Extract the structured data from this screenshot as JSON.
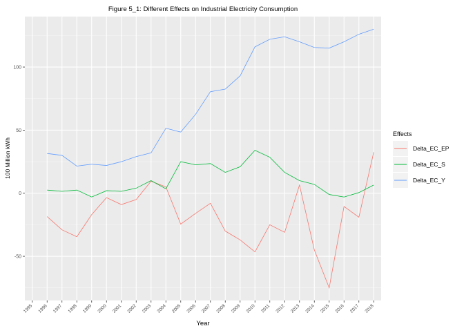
{
  "chart_data": {
    "type": "line",
    "title": "Figure 5_1: Different Effects on Industrial Electricity Consumption",
    "xlabel": "Year",
    "ylabel": "100 Million  kWh",
    "categories": [
      "1995",
      "1996",
      "1997",
      "1998",
      "1999",
      "2000",
      "2001",
      "2002",
      "2003",
      "2004",
      "2005",
      "2006",
      "2007",
      "2008",
      "2009",
      "2010",
      "2011",
      "2012",
      "2013",
      "2014",
      "2015",
      "2016",
      "2017",
      "2018"
    ],
    "y_ticks": [
      -50,
      0,
      50,
      100
    ],
    "ylim": [
      -85,
      140
    ],
    "grid": true,
    "legend_title": "Effects",
    "legend_position": "right",
    "series": [
      {
        "name": "Delta_EC_EP",
        "color": "#F8766D",
        "values": [
          null,
          -18.5,
          -29,
          -34.5,
          -17,
          -3.5,
          -9,
          -5,
          9.5,
          5,
          -24.5,
          -16,
          -8,
          -30,
          -37,
          -46.5,
          -25,
          -31,
          6.5,
          -45,
          -75,
          -10.5,
          -19,
          32.5
        ]
      },
      {
        "name": "Delta_EC_S",
        "color": "#00BA38",
        "values": [
          null,
          2.5,
          1.5,
          2.5,
          -3,
          2,
          1.5,
          4,
          10,
          3.5,
          25,
          22.5,
          23.5,
          16.5,
          21,
          34,
          28.5,
          16.5,
          10,
          7,
          -1,
          -3,
          0.5,
          6.5
        ]
      },
      {
        "name": "Delta_EC_Y",
        "color": "#619CFF",
        "values": [
          null,
          31.5,
          30,
          21.5,
          23,
          22,
          25,
          29,
          32,
          51.5,
          48.5,
          62.5,
          80.5,
          82.5,
          93,
          116,
          122,
          124,
          120,
          115.5,
          115,
          120,
          126,
          130
        ]
      }
    ]
  }
}
